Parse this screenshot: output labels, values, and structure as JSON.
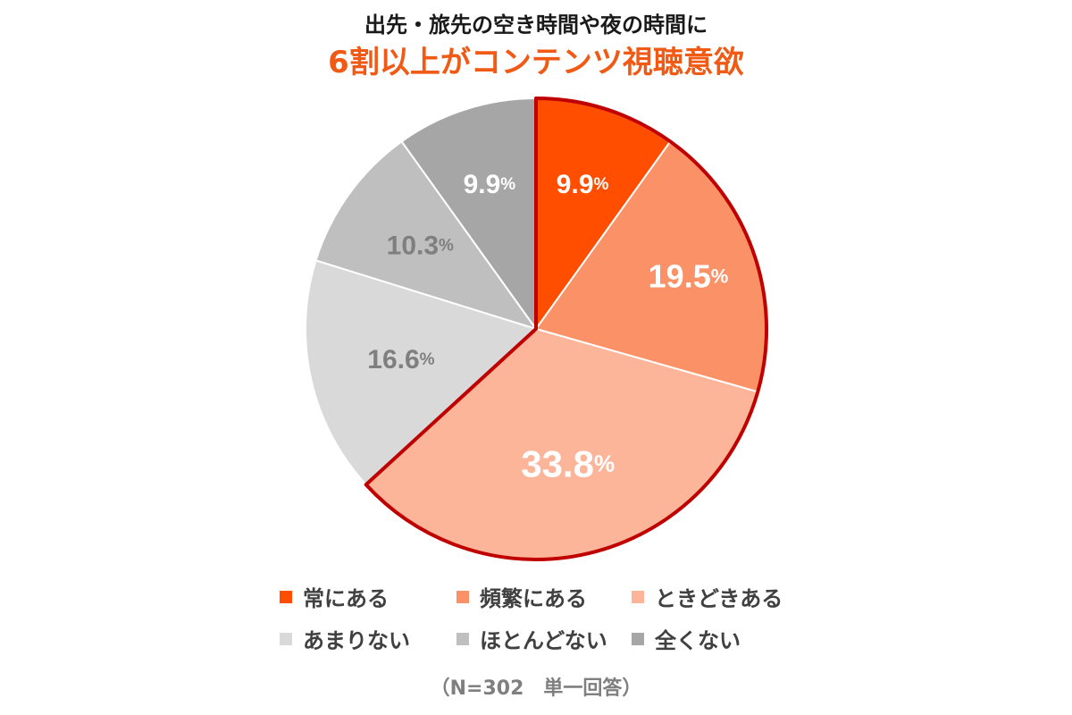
{
  "title_line1": "出先・旅先の空き時間や夜の時間に",
  "title_line2": "6割以上がコンテンツ視聴意欲",
  "note": "（N=302　単一回答）",
  "colors": {
    "title_accent": "#f05a14",
    "highlight_border": "#c00000"
  },
  "chart_data": {
    "type": "pie",
    "title": "6割以上がコンテンツ視聴意欲",
    "unit": "%",
    "start_angle_deg": 0,
    "direction": "clockwise",
    "highlighted_group": [
      "常にある",
      "頻繁にある",
      "ときどきある"
    ],
    "slices": [
      {
        "label": "常にある",
        "value": 9.9,
        "color": "#ff4e00",
        "label_color": "#ffffff"
      },
      {
        "label": "頻繁にある",
        "value": 19.5,
        "color": "#fb9166",
        "label_color": "#ffffff"
      },
      {
        "label": "ときどきある",
        "value": 33.8,
        "color": "#fcb598",
        "label_color": "#ffffff"
      },
      {
        "label": "あまりない",
        "value": 16.6,
        "color": "#d9d9d9",
        "label_color": "#7f7f7f"
      },
      {
        "label": "ほとんどない",
        "value": 10.3,
        "color": "#bfbfbf",
        "label_color": "#7f7f7f"
      },
      {
        "label": "全くない",
        "value": 9.9,
        "color": "#a6a6a6",
        "label_color": "#ffffff"
      }
    ],
    "legend_position": "bottom"
  }
}
